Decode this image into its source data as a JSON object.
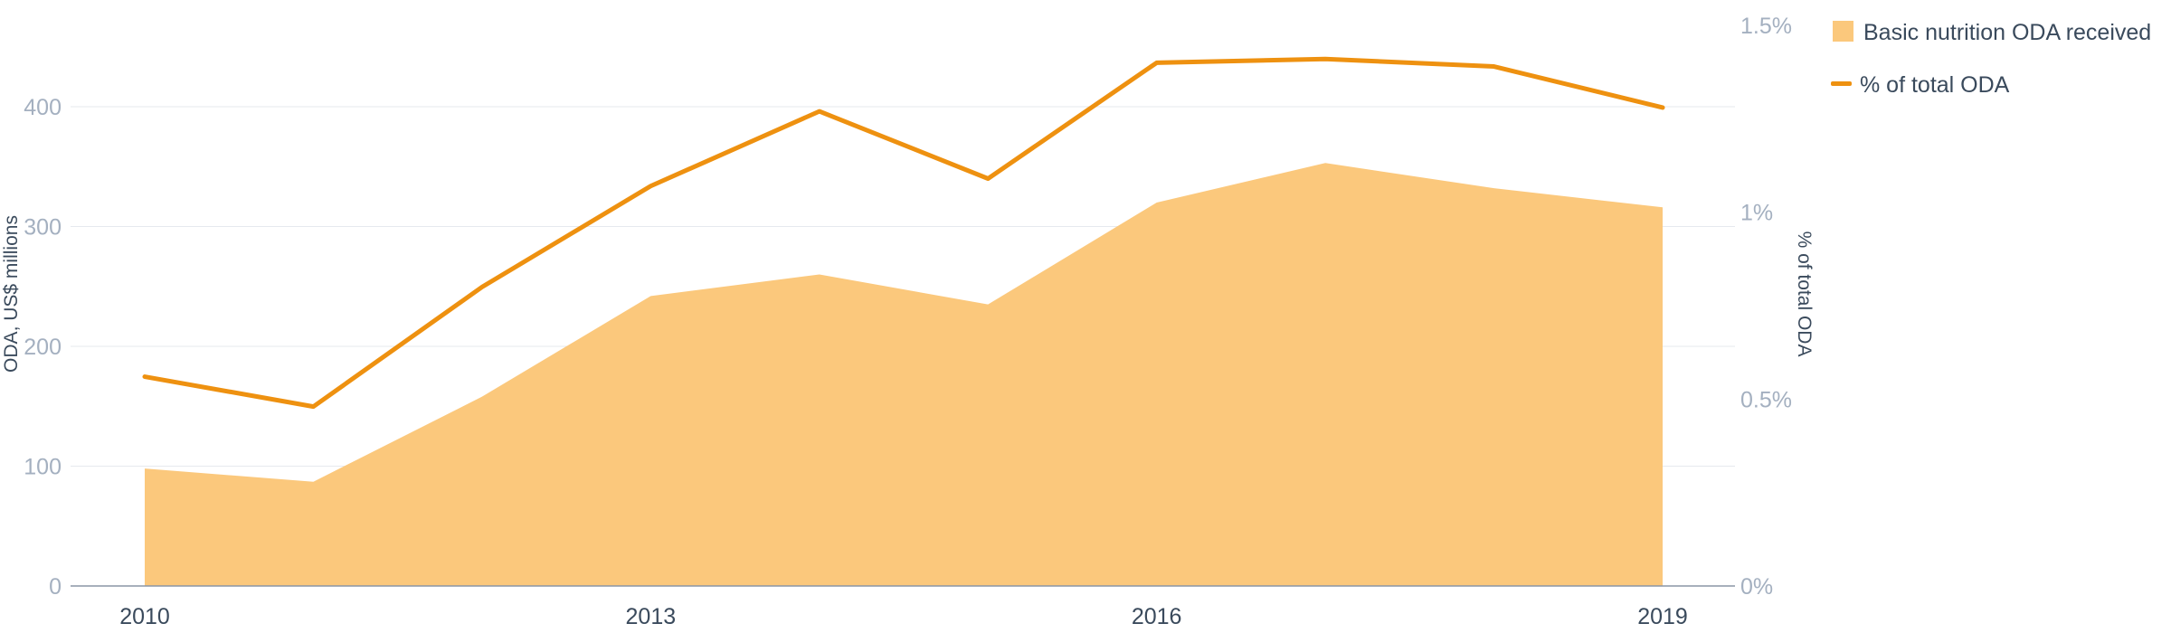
{
  "chart_data": {
    "type": "area",
    "x": [
      2010,
      2011,
      2012,
      2013,
      2014,
      2015,
      2016,
      2017,
      2018,
      2019
    ],
    "x_ticks": [
      "2010",
      "2013",
      "2016",
      "2019"
    ],
    "series": [
      {
        "name": "Basic nutrition ODA received",
        "type": "area",
        "axis": "left",
        "color": "#fbc87c",
        "values": [
          98,
          87,
          158,
          242,
          260,
          235,
          320,
          353,
          332,
          316
        ]
      },
      {
        "name": "% of total ODA",
        "type": "line",
        "axis": "right",
        "color": "#ee9110",
        "values": [
          0.56,
          0.48,
          0.8,
          1.07,
          1.27,
          1.09,
          1.4,
          1.41,
          1.39,
          1.28
        ]
      }
    ],
    "y_left": {
      "label": "ODA, US$ millions",
      "range": [
        0,
        465
      ],
      "ticks": [
        "0",
        "100",
        "200",
        "300",
        "400"
      ]
    },
    "y_right": {
      "label": "% of total ODA",
      "range": [
        0,
        1.5
      ],
      "ticks": [
        "0%",
        "0.5%",
        "1%",
        "1.5%"
      ]
    },
    "grid": true,
    "legend_position": "top-right"
  }
}
